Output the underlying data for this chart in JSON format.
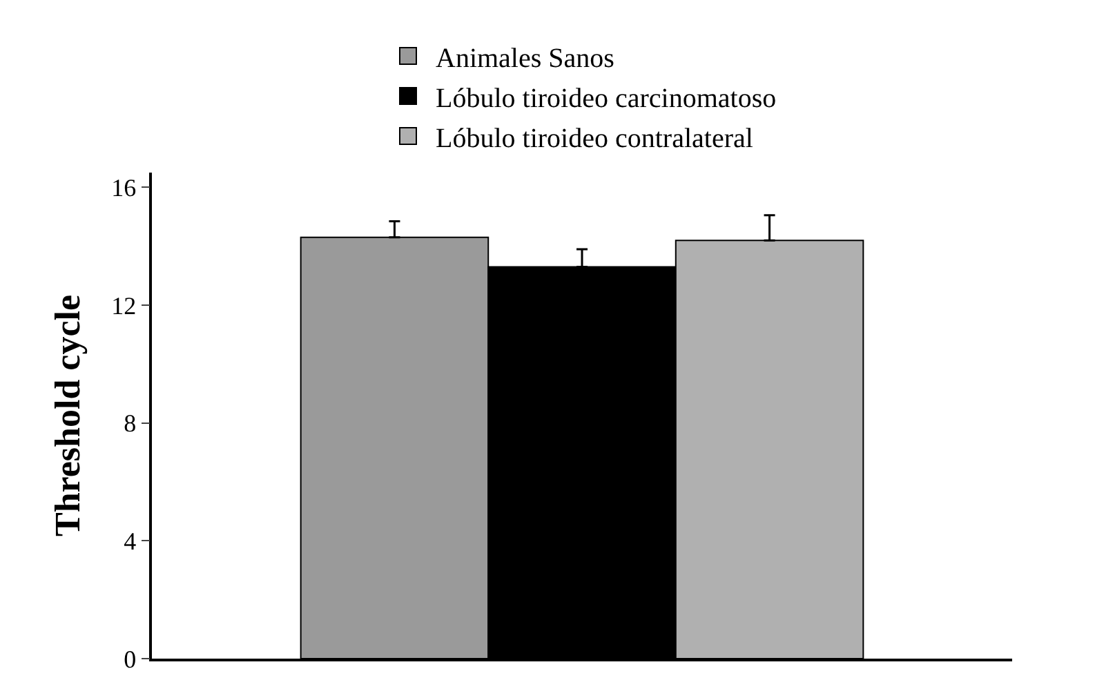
{
  "chart_data": {
    "type": "bar",
    "ylabel": "Threshold cycle",
    "categories": [
      null
    ],
    "series": [
      {
        "name": "Animales Sanos",
        "color": "#9a9a9a",
        "values": [
          14.3
        ],
        "errors": [
          [
            14.3,
            14.85
          ]
        ]
      },
      {
        "name": "Lóbulo tiroideo carcinomatoso",
        "color": "#000000",
        "values": [
          13.3
        ],
        "errors": [
          [
            13.3,
            13.9
          ]
        ]
      },
      {
        "name": "Lóbulo tiroideo contralateral",
        "color": "#b0b0b0",
        "values": [
          14.2
        ],
        "errors": [
          [
            14.2,
            15.05
          ]
        ]
      }
    ],
    "ylim": [
      0,
      16.5
    ],
    "yticks": [
      0,
      4,
      8,
      12,
      16
    ],
    "legend": "top"
  }
}
